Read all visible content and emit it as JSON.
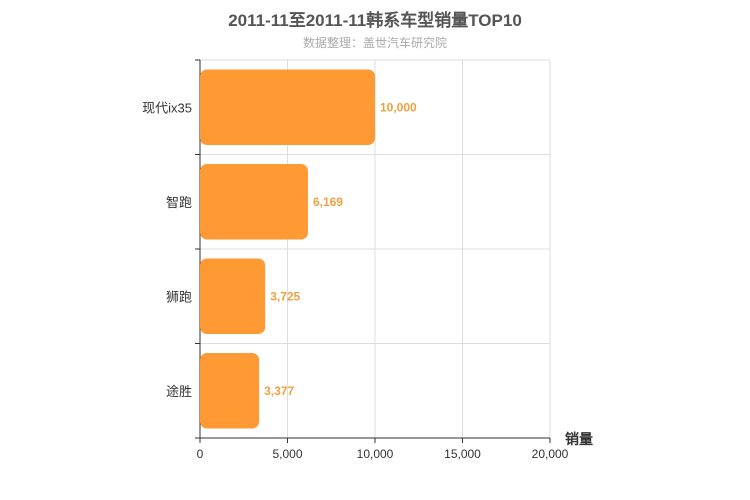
{
  "chart_data": {
    "type": "bar",
    "orientation": "horizontal",
    "title": "2011-11至2011-11韩系车型销量TOP10",
    "subtitle": "数据整理：盖世汽车研究院",
    "categories": [
      "现代ix35",
      "智跑",
      "狮跑",
      "途胜"
    ],
    "values": [
      10000,
      6169,
      3725,
      3377
    ],
    "value_labels": [
      "10,000",
      "6,169",
      "3,725",
      "3,377"
    ],
    "xlabel": "销量",
    "ylabel": "",
    "xlim": [
      0,
      20000
    ],
    "x_ticks": [
      0,
      5000,
      10000,
      15000,
      20000
    ],
    "x_tick_labels": [
      "0",
      "5,000",
      "10,000",
      "15,000",
      "20,000"
    ],
    "grid": true,
    "legend": "none"
  },
  "colors": {
    "bar": "#ff9933",
    "label": "#f0a040",
    "grid": "#dddddd",
    "axis": "#333333"
  }
}
